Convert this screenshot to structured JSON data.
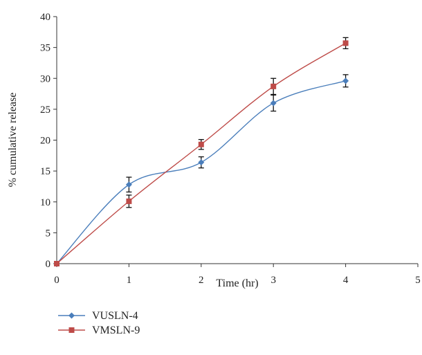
{
  "chart_data": {
    "type": "line",
    "title": "",
    "xlabel": "Time (hr)",
    "ylabel": "% cumulative release",
    "xlim": [
      0,
      5
    ],
    "ylim": [
      0,
      40
    ],
    "x_ticks": [
      "0",
      "1",
      "2",
      "3",
      "4",
      "5"
    ],
    "y_ticks": [
      "0",
      "5",
      "10",
      "15",
      "20",
      "25",
      "30",
      "35",
      "40"
    ],
    "grid": false,
    "legend_position": "bottom-left",
    "series": [
      {
        "name": "VUSLN-4",
        "color": "#4a7ebb",
        "marker": "diamond",
        "x": [
          0,
          1,
          2,
          3,
          4
        ],
        "y": [
          0,
          12.8,
          16.4,
          26.0,
          29.6
        ],
        "err": [
          0,
          1.2,
          0.9,
          1.3,
          1.0
        ]
      },
      {
        "name": "VMSLN-9",
        "color": "#be4b48",
        "marker": "square",
        "x": [
          0,
          1,
          2,
          3,
          4
        ],
        "y": [
          0,
          10.1,
          19.3,
          28.7,
          35.7
        ],
        "err": [
          0,
          1.0,
          0.8,
          1.3,
          0.9
        ]
      }
    ]
  }
}
